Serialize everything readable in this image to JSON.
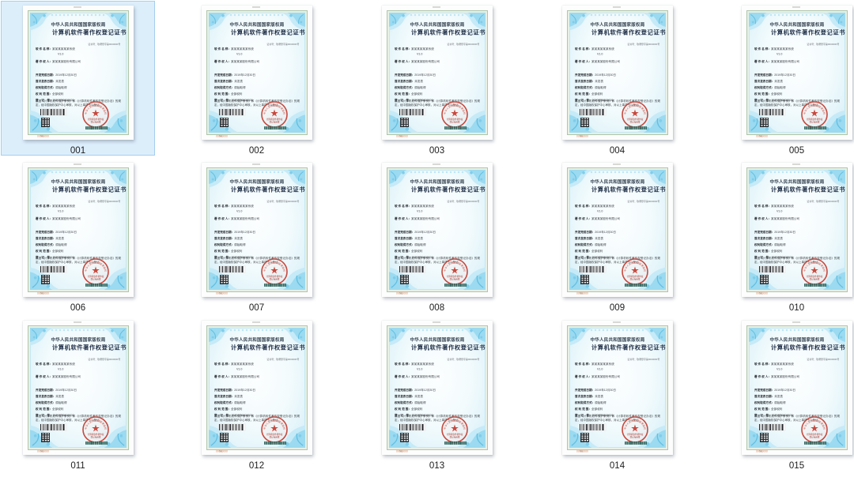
{
  "view": {
    "selected_item": "001"
  },
  "items": [
    {
      "label": "001"
    },
    {
      "label": "002"
    },
    {
      "label": "003"
    },
    {
      "label": "004"
    },
    {
      "label": "005"
    },
    {
      "label": "006"
    },
    {
      "label": "007"
    },
    {
      "label": "008"
    },
    {
      "label": "009"
    },
    {
      "label": "010"
    },
    {
      "label": "011"
    },
    {
      "label": "012"
    },
    {
      "label": "013"
    },
    {
      "label": "014"
    },
    {
      "label": "015"
    }
  ],
  "certificate": {
    "authority": "中华人民共和国国家版权局",
    "title": "计算机软件著作权登记证书",
    "cert_no_line": "证书号：软著登字第0000000号",
    "version": "V1.0",
    "fields": [
      {
        "label": "软 件 名 称：",
        "value": "某某某某某某系统"
      },
      {
        "label": "著 作 权 人：",
        "value": "某某某某股份有限公司"
      },
      {
        "label": "开发完成日期：",
        "value": "2019年12月30日"
      },
      {
        "label": "首次发表日期：",
        "value": "未发表"
      },
      {
        "label": "权利取得方式：",
        "value": "原始取得"
      },
      {
        "label": "权 利 范 围：",
        "value": "全部权利"
      },
      {
        "label": "登　记　号：",
        "value": "2020SR0000000"
      }
    ],
    "statement": "根据《计算机软件保护条例》和《计算机软件著作权登记办法》的规定，经中国版权保护中心审核，对以上事项予以登记。",
    "no_prefix": "No.",
    "no_value": "00000000",
    "seal_arc_text": "中华人民共和国国家版权局",
    "seal_bottom_text_1": "计算机软件著作权",
    "seal_bottom_text_2": "登记专用章",
    "colors": {
      "seal_red": "#c7493e",
      "ornament_blue": "#9bdaf0",
      "selection_fill": "#ddeefb",
      "selection_border": "#a4cfee"
    }
  }
}
